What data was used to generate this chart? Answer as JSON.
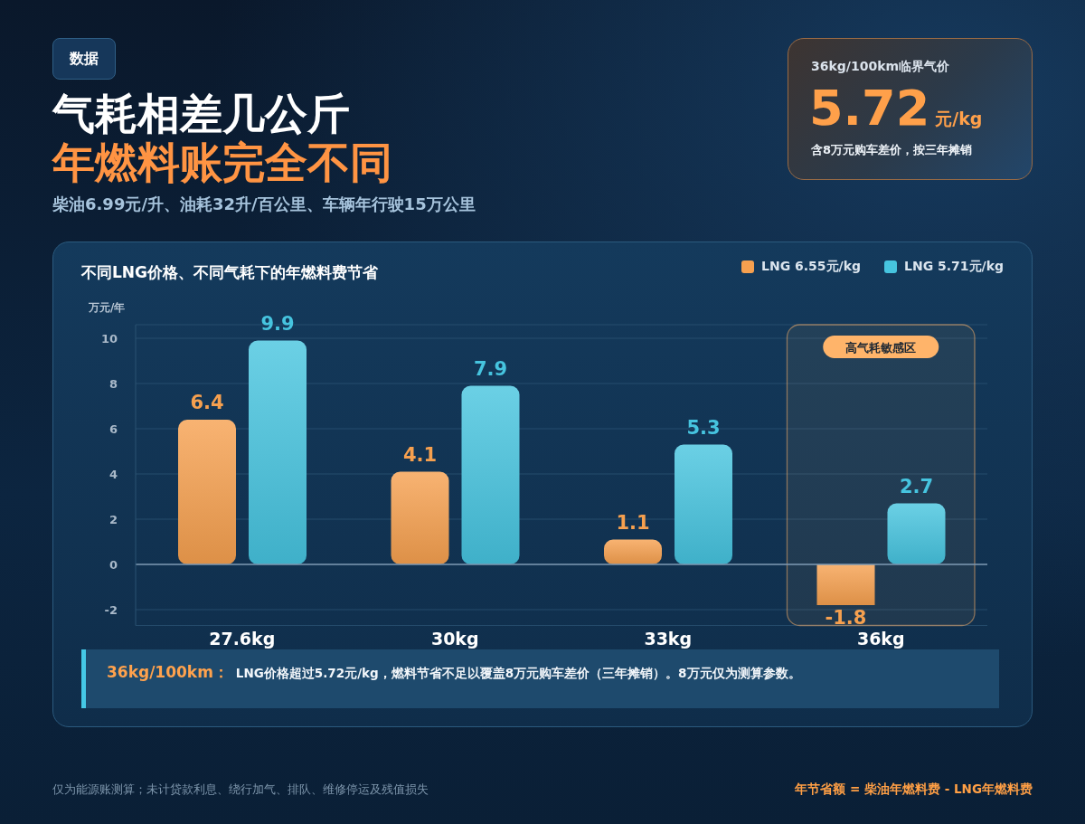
{
  "chart_data": {
    "type": "bar",
    "title": "气耗相差几公斤",
    "subtitle": "年燃料账完全不同",
    "ylabel": "万元/年",
    "categories": [
      "27.6kg",
      "30kg",
      "33kg",
      "36kg"
    ],
    "series": [
      {
        "name": "LNG 6.55元/kg",
        "color": "#f6a04f",
        "values": [
          6.4,
          4.1,
          1.1,
          -1.8
        ]
      },
      {
        "name": "LNG 5.71元/kg",
        "color": "#46c4df",
        "values": [
          9.9,
          7.9,
          5.3,
          2.7
        ]
      }
    ],
    "ylim": [
      -2.7,
      10.6
    ],
    "yticks": [
      -2,
      0,
      2,
      4,
      6,
      8,
      10
    ],
    "grid": "y",
    "legend": "top right",
    "data_labels": true,
    "ref_lines": [
      {
        "axis": "y",
        "value": 0,
        "color": "#7d97b0"
      }
    ],
    "bands": [
      {
        "axis": "x",
        "from": "36kg",
        "to": "36kg",
        "label": "高气耗敏感区",
        "color": "#ffb46a"
      }
    ],
    "annotations": [
      "数据",
      "柴油6.99元/升、油耗32升/百公里、车辆年行驶15万公里",
      "36kg/100km临界气价",
      "5.72",
      "元/kg",
      "含8万元购车差价，按三年摊销",
      "不同LNG价格、不同气耗下的年燃料费节省",
      "36kg/100km：",
      "LNG价格超过5.72元/kg，燃料节省不足以覆盖8万元购车差价（三年摊销）。8万元仅为测算参数。",
      "仅为能源账测算；未计贷款利息、绕行加气、排队、维修停运及残值损失",
      "年节省额 = 柴油年燃料费 - LNG年燃料费"
    ]
  }
}
